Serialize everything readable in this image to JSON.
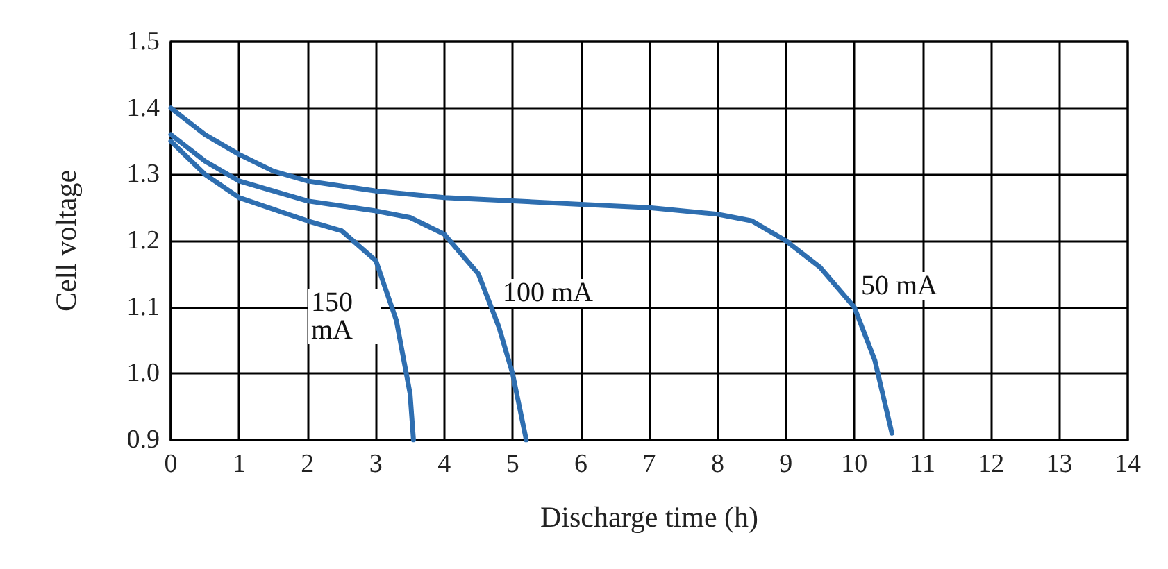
{
  "chart_data": {
    "type": "line",
    "xlabel": "Discharge time (h)",
    "ylabel": "Cell voltage",
    "xlim": [
      0,
      14
    ],
    "xticks": [
      0,
      1,
      2,
      3,
      4,
      5,
      6,
      7,
      8,
      9,
      10,
      11,
      12,
      13,
      14
    ],
    "ylim": [
      0.9,
      1.5
    ],
    "yticks": [
      0.9,
      {
        "value": 1.0,
        "label": "1.0"
      },
      1.1,
      1.2,
      1.3,
      1.4,
      1.5
    ],
    "grid": true,
    "marker": "none",
    "line_style": "solid",
    "series": [
      {
        "name": "50 mA",
        "color": "#2e6eb0",
        "x": [
          0,
          0.5,
          1,
          1.5,
          2,
          3,
          4,
          5,
          6,
          7,
          8,
          8.5,
          9,
          9.5,
          10,
          10.3,
          10.55
        ],
        "values": [
          1.4,
          1.36,
          1.33,
          1.305,
          1.29,
          1.275,
          1.265,
          1.26,
          1.255,
          1.25,
          1.24,
          1.23,
          1.2,
          1.16,
          1.1,
          1.02,
          0.91
        ]
      },
      {
        "name": "100 mA",
        "color": "#2e6eb0",
        "x": [
          0,
          0.5,
          1,
          2,
          3,
          3.5,
          4,
          4.5,
          4.8,
          5,
          5.1,
          5.2
        ],
        "values": [
          1.36,
          1.32,
          1.29,
          1.26,
          1.245,
          1.235,
          1.21,
          1.15,
          1.07,
          1.0,
          0.95,
          0.9
        ]
      },
      {
        "name": "150 mA",
        "color": "#2e6eb0",
        "x": [
          0,
          0.5,
          1,
          2,
          2.5,
          3,
          3.3,
          3.5,
          3.55
        ],
        "values": [
          1.35,
          1.3,
          1.265,
          1.23,
          1.215,
          1.17,
          1.08,
          0.97,
          0.9
        ]
      }
    ]
  }
}
